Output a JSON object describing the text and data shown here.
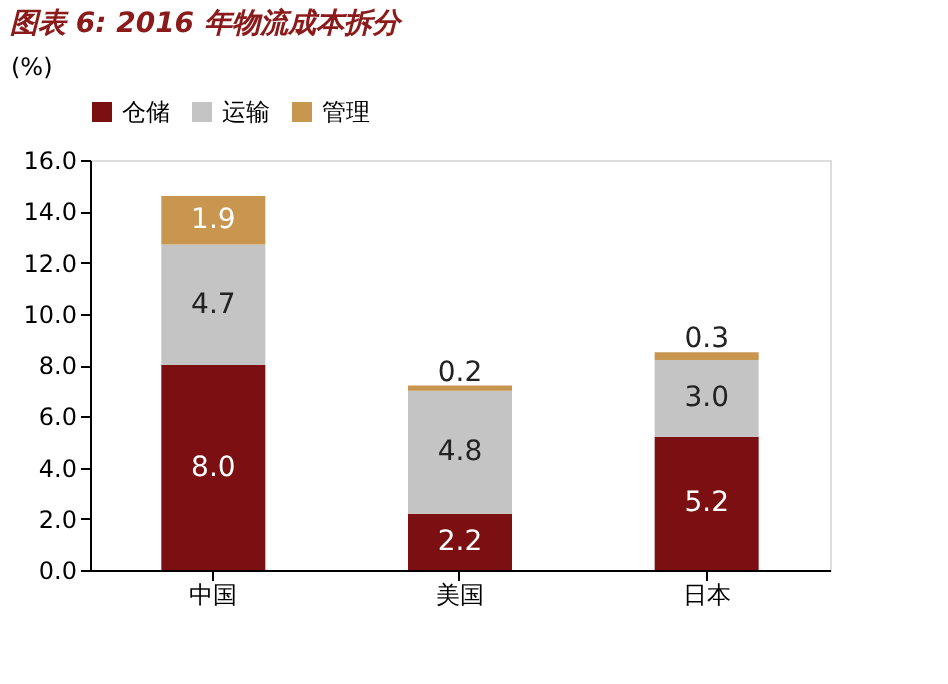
{
  "chart_data": {
    "type": "bar",
    "title": "图表 6: 2016 年物流成本拆分",
    "ylabel": "(%)",
    "categories": [
      "中国",
      "美国",
      "日本"
    ],
    "stacked": true,
    "series": [
      {
        "name": "仓储",
        "color": "#7b0f12",
        "values": [
          8.0,
          2.2,
          5.2
        ],
        "value_labels": [
          "8.0",
          "2.2",
          "5.2"
        ]
      },
      {
        "name": "运输",
        "color": "#c4c4c4",
        "values": [
          4.7,
          4.8,
          3.0
        ],
        "value_labels": [
          "4.7",
          "4.8",
          "3.0"
        ]
      },
      {
        "name": "管理",
        "color": "#c8964f",
        "values": [
          1.9,
          0.2,
          0.3
        ],
        "value_labels": [
          "1.9",
          "0.2",
          "0.3"
        ]
      }
    ],
    "ylim": [
      0,
      16
    ],
    "yticks": [
      {
        "value": 0,
        "label": "0.0"
      },
      {
        "value": 2,
        "label": "2.0"
      },
      {
        "value": 4,
        "label": "4.0"
      },
      {
        "value": 6,
        "label": "6.0"
      },
      {
        "value": 8,
        "label": "8.0"
      },
      {
        "value": 10,
        "label": "10.0"
      },
      {
        "value": 12,
        "label": "12.0"
      },
      {
        "value": 14,
        "label": "14.0"
      },
      {
        "value": 16,
        "label": "16.0"
      }
    ],
    "grid": false,
    "legend": "top"
  }
}
